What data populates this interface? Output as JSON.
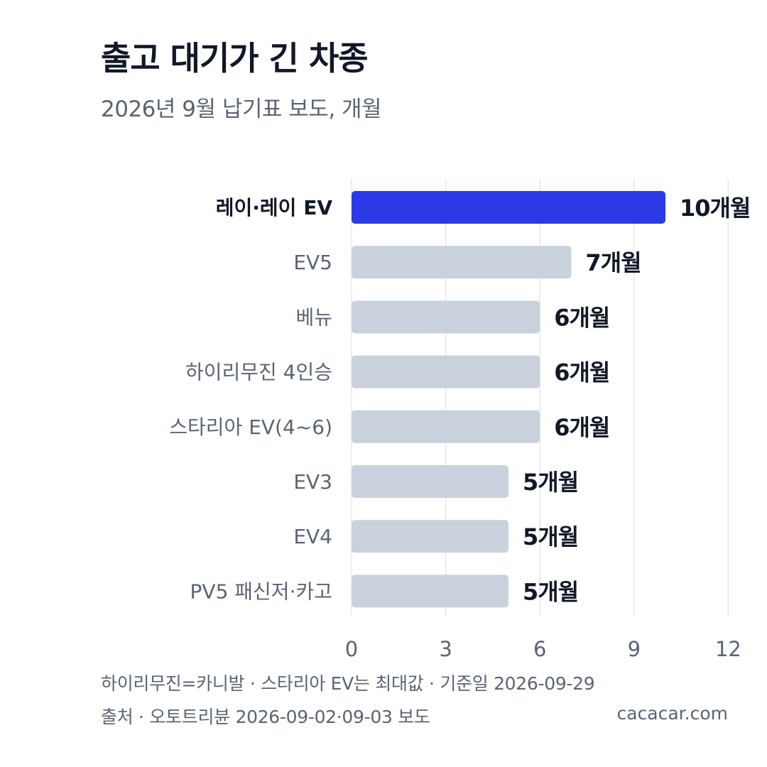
{
  "header": {
    "title": "출고 대기가 긴 차종",
    "subtitle": "2026년 9월 납기표 보도, 개월"
  },
  "footer": {
    "note": "하이리무진=카니발 · 스타리아 EV는 최대값 · 기준일 2026-09-29",
    "source": "출처 · 오토트리뷴 2026-09-02·09-03 보도",
    "site": "cacacar.com"
  },
  "colors": {
    "highlight": "#2b3ae6",
    "bar": "#c9d1dc",
    "grid": "#e5e7eb",
    "label": "#5b6474",
    "label_highlight": "#111827",
    "value": "#111827"
  },
  "chart_data": {
    "type": "bar",
    "orientation": "horizontal",
    "categories": [
      "레이·레이 EV",
      "EV5",
      "베뉴",
      "하이리무진 4인승",
      "스타리아 EV(4~6)",
      "EV3",
      "EV4",
      "PV5 패신저·카고"
    ],
    "values": [
      10,
      7,
      6,
      6,
      6,
      5,
      5,
      5
    ],
    "value_labels": [
      "10개월",
      "7개월",
      "6개월",
      "6개월",
      "6개월",
      "5개월",
      "5개월",
      "5개월"
    ],
    "highlight_index": 0,
    "xlim": [
      0,
      12
    ],
    "xticks": [
      0,
      3,
      6,
      9,
      12
    ],
    "xtick_labels": [
      "0",
      "3",
      "6",
      "9",
      "12"
    ],
    "grid": "vertical"
  }
}
